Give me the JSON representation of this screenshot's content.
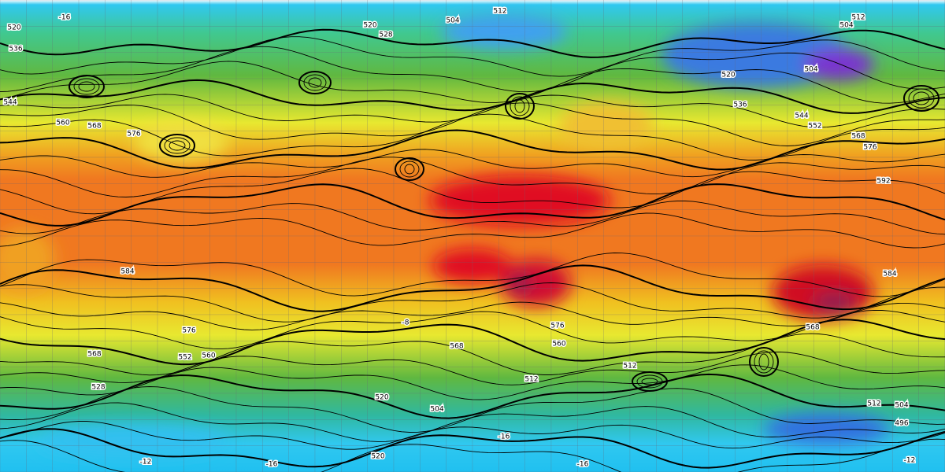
{
  "map": {
    "contour_labels": [
      520,
      536,
      544,
      560,
      568,
      576,
      -16,
      520,
      528,
      504,
      512,
      512,
      504,
      504,
      520,
      536,
      544,
      552,
      568,
      576,
      592,
      584,
      576,
      568,
      552,
      560,
      528,
      568,
      560,
      576,
      504,
      520,
      512,
      512,
      512,
      504,
      496,
      520,
      -12,
      -12,
      -16,
      -16,
      -16,
      -8,
      584,
      568
    ]
  }
}
